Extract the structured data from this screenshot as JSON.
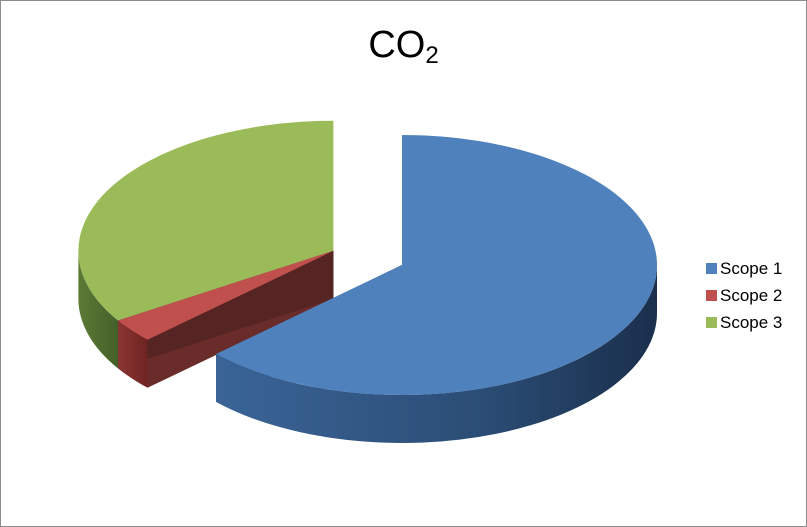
{
  "chart_data": {
    "type": "pie",
    "title": "CO",
    "title_subscript": "2",
    "style": "3d-exploded",
    "categories": [
      "Scope 1",
      "Scope 2",
      "Scope 3"
    ],
    "values": [
      63,
      3,
      34
    ],
    "colors": [
      "#4f81bd",
      "#c0504d",
      "#9bbb59"
    ],
    "legend_position": "right"
  }
}
